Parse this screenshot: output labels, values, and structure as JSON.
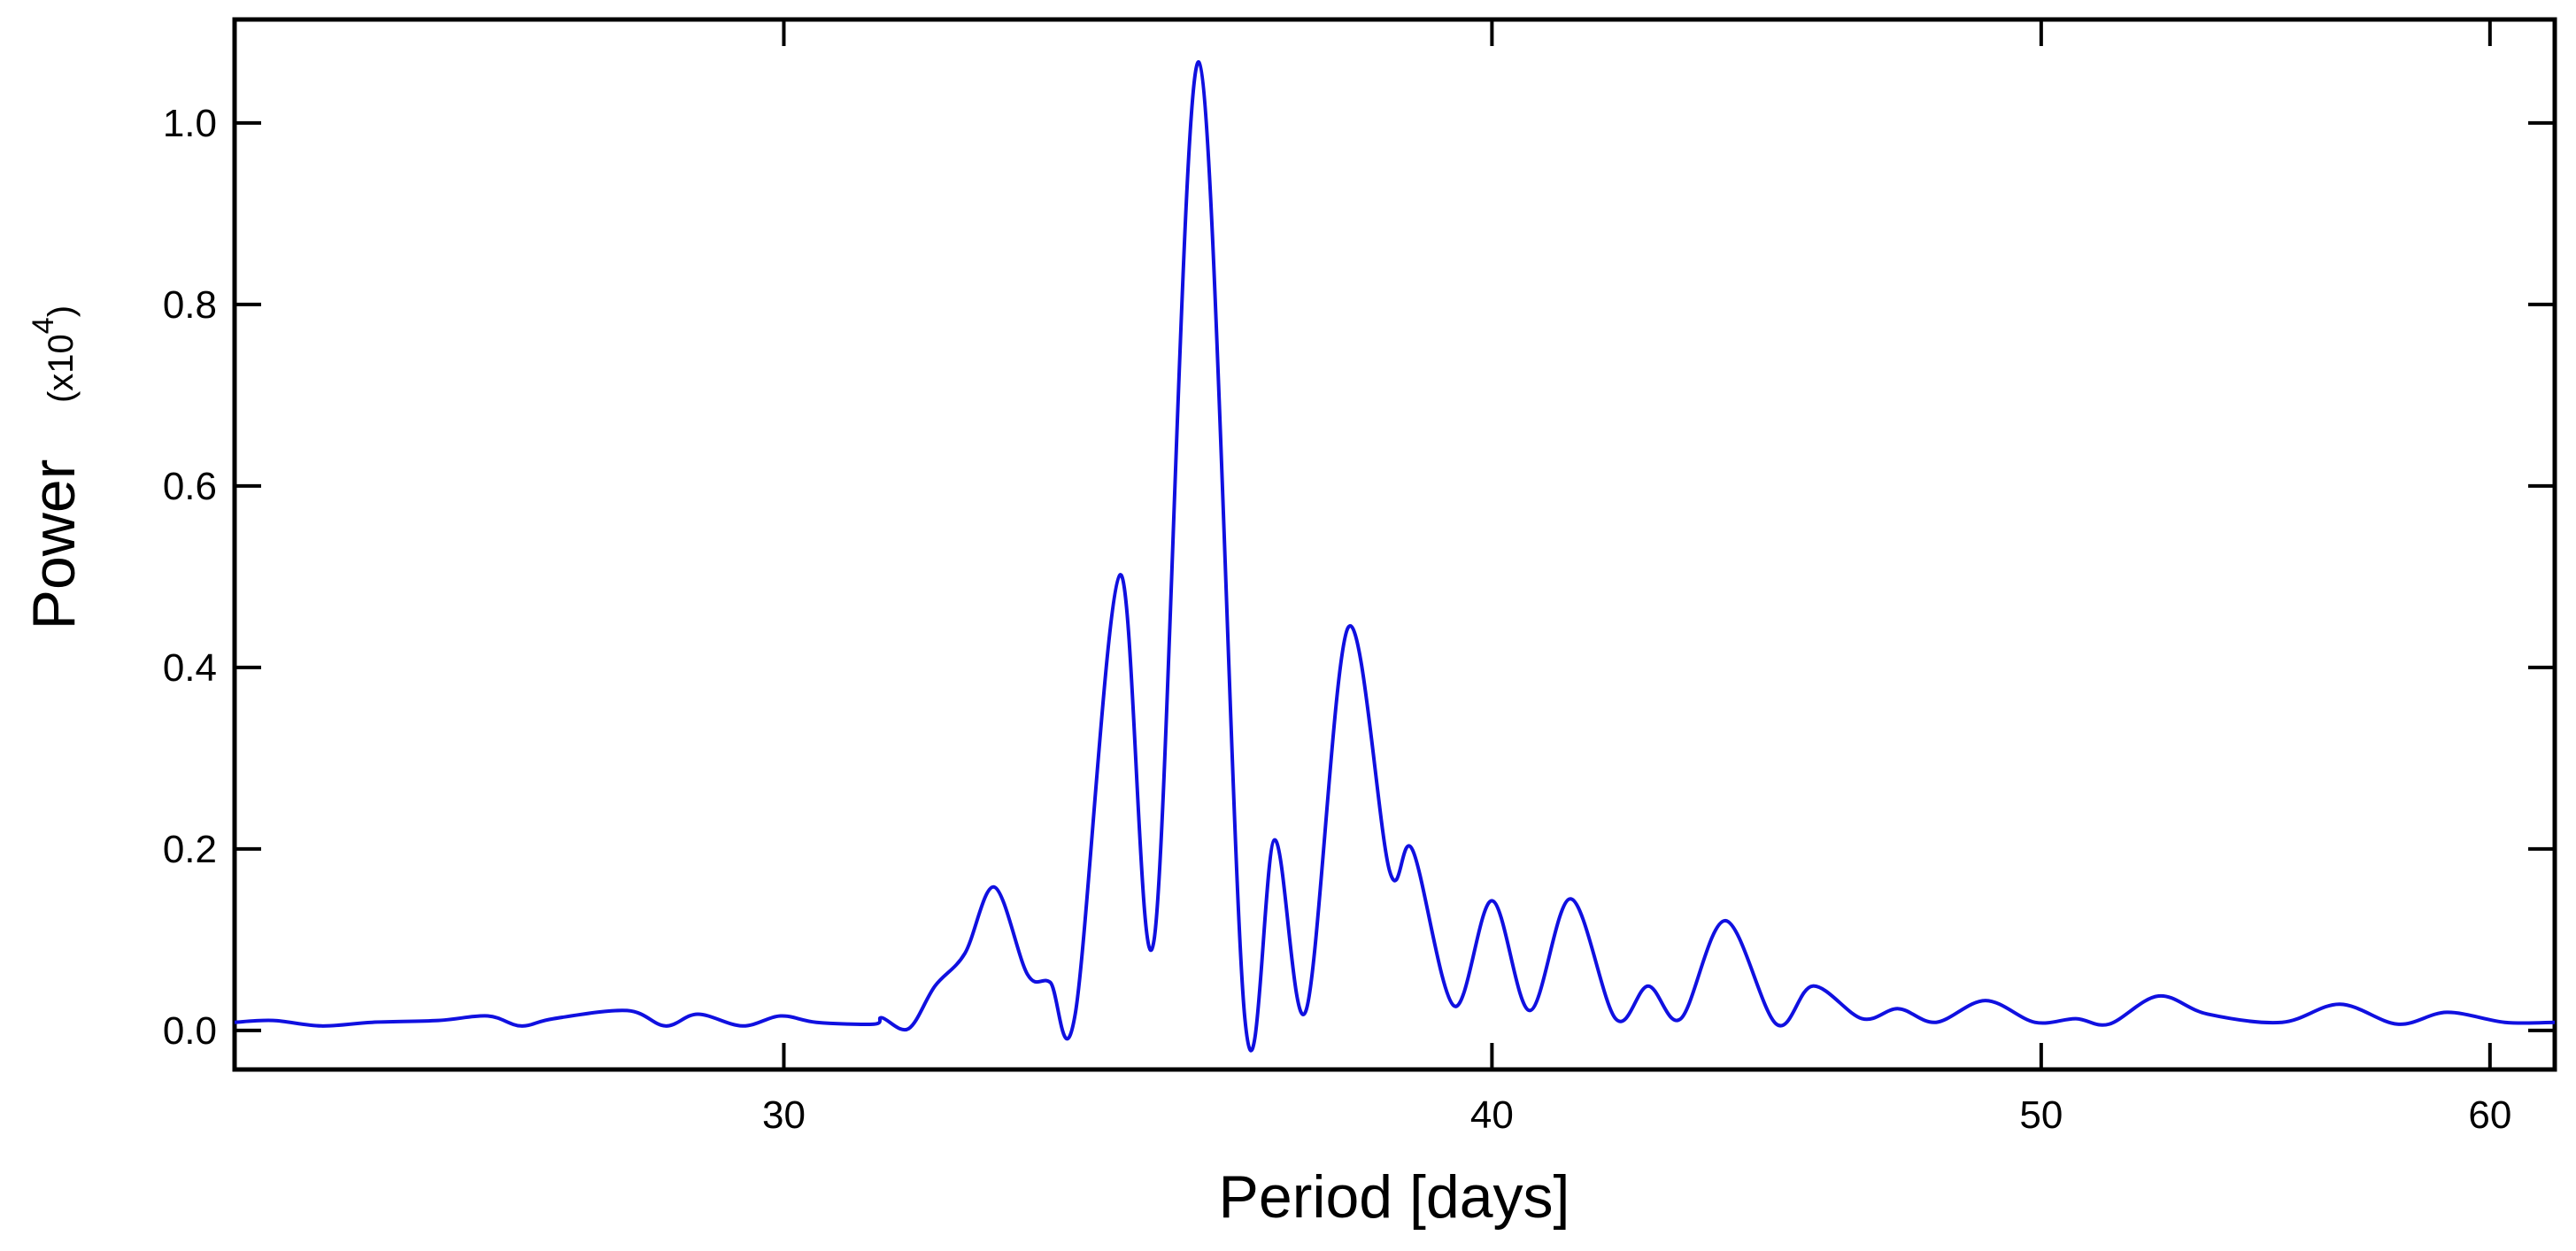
{
  "chart_data": {
    "type": "line",
    "xlabel": "Period [days]",
    "ylabel": "Power",
    "ylabel_unit": {
      "prefix": "(x10",
      "exponent": "4",
      "suffix": ")"
    },
    "xscale": "log",
    "xlim": [
      24,
      61.6
    ],
    "ylim": [
      -0.043,
      1.114
    ],
    "xticks": [
      30,
      40,
      50,
      60
    ],
    "yticks": [
      {
        "value": 0,
        "label": "0.0"
      },
      0.2,
      0.4,
      0.6,
      0.8,
      {
        "value": 1,
        "label": "1.0"
      }
    ],
    "grid": false,
    "x": [
      24.0,
      24.38,
      24.86,
      25.38,
      26.07,
      26.6,
      26.96,
      27.32,
      28.15,
      28.59,
      28.97,
      29.5,
      29.96,
      30.4,
      31.12,
      31.22,
      31.56,
      31.9,
      32.29,
      32.68,
      33.12,
      33.43,
      33.77,
      34.39,
      34.87,
      35.51,
      36.18,
      36.62,
      37.09,
      37.73,
      38.37,
      38.73,
      39.39,
      40.0,
      40.62,
      41.3,
      42.06,
      42.62,
      43.19,
      43.98,
      44.9,
      45.57,
      46.49,
      47.18,
      47.91,
      48.88,
      49.87,
      50.71,
      51.4,
      52.44,
      53.5,
      55.14,
      56.45,
      57.79,
      58.96,
      60.36,
      61.6
    ],
    "series": [
      {
        "name": "Power",
        "color": "#1010e0",
        "values": [
          0.009,
          0.011,
          0.005,
          0.009,
          0.011,
          0.016,
          0.005,
          0.013,
          0.022,
          0.005,
          0.018,
          0.005,
          0.016,
          0.009,
          0.007,
          0.014,
          0.002,
          0.049,
          0.085,
          0.158,
          0.062,
          0.053,
          0.018,
          0.502,
          0.1,
          1.067,
          0.013,
          0.21,
          0.022,
          0.444,
          0.176,
          0.199,
          0.027,
          0.143,
          0.022,
          0.145,
          0.013,
          0.049,
          0.013,
          0.121,
          0.007,
          0.049,
          0.013,
          0.024,
          0.009,
          0.033,
          0.009,
          0.013,
          0.007,
          0.038,
          0.018,
          0.009,
          0.029,
          0.007,
          0.02,
          0.009,
          0.009
        ]
      }
    ]
  }
}
